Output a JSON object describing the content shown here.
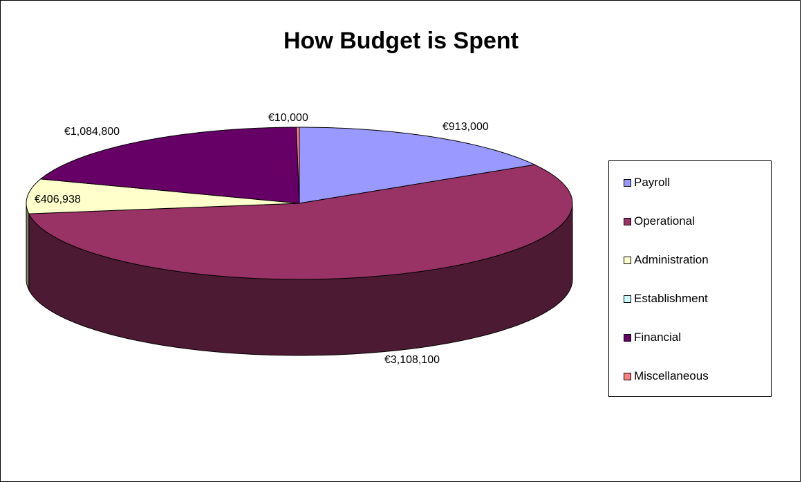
{
  "chart_data": {
    "type": "pie",
    "title": "How Budget is Spent",
    "three_d": true,
    "legend_position": "right",
    "slices": [
      {
        "name": "Payroll",
        "value": 913000,
        "label": "€913,000",
        "color": "#9999ff"
      },
      {
        "name": "Operational",
        "value": 3108100,
        "label": "€3,108,100",
        "color": "#993366"
      },
      {
        "name": "Administration",
        "value": 406938,
        "label": "€406,938",
        "color": "#ffffcc"
      },
      {
        "name": "Establishment",
        "value": 0,
        "label": "",
        "color": "#ccffff"
      },
      {
        "name": "Financial",
        "value": 1084800,
        "label": "€1,084,800",
        "color": "#660066"
      },
      {
        "name": "Miscellaneous",
        "value": 10000,
        "label": "€10,000",
        "color": "#ff8080"
      }
    ]
  }
}
